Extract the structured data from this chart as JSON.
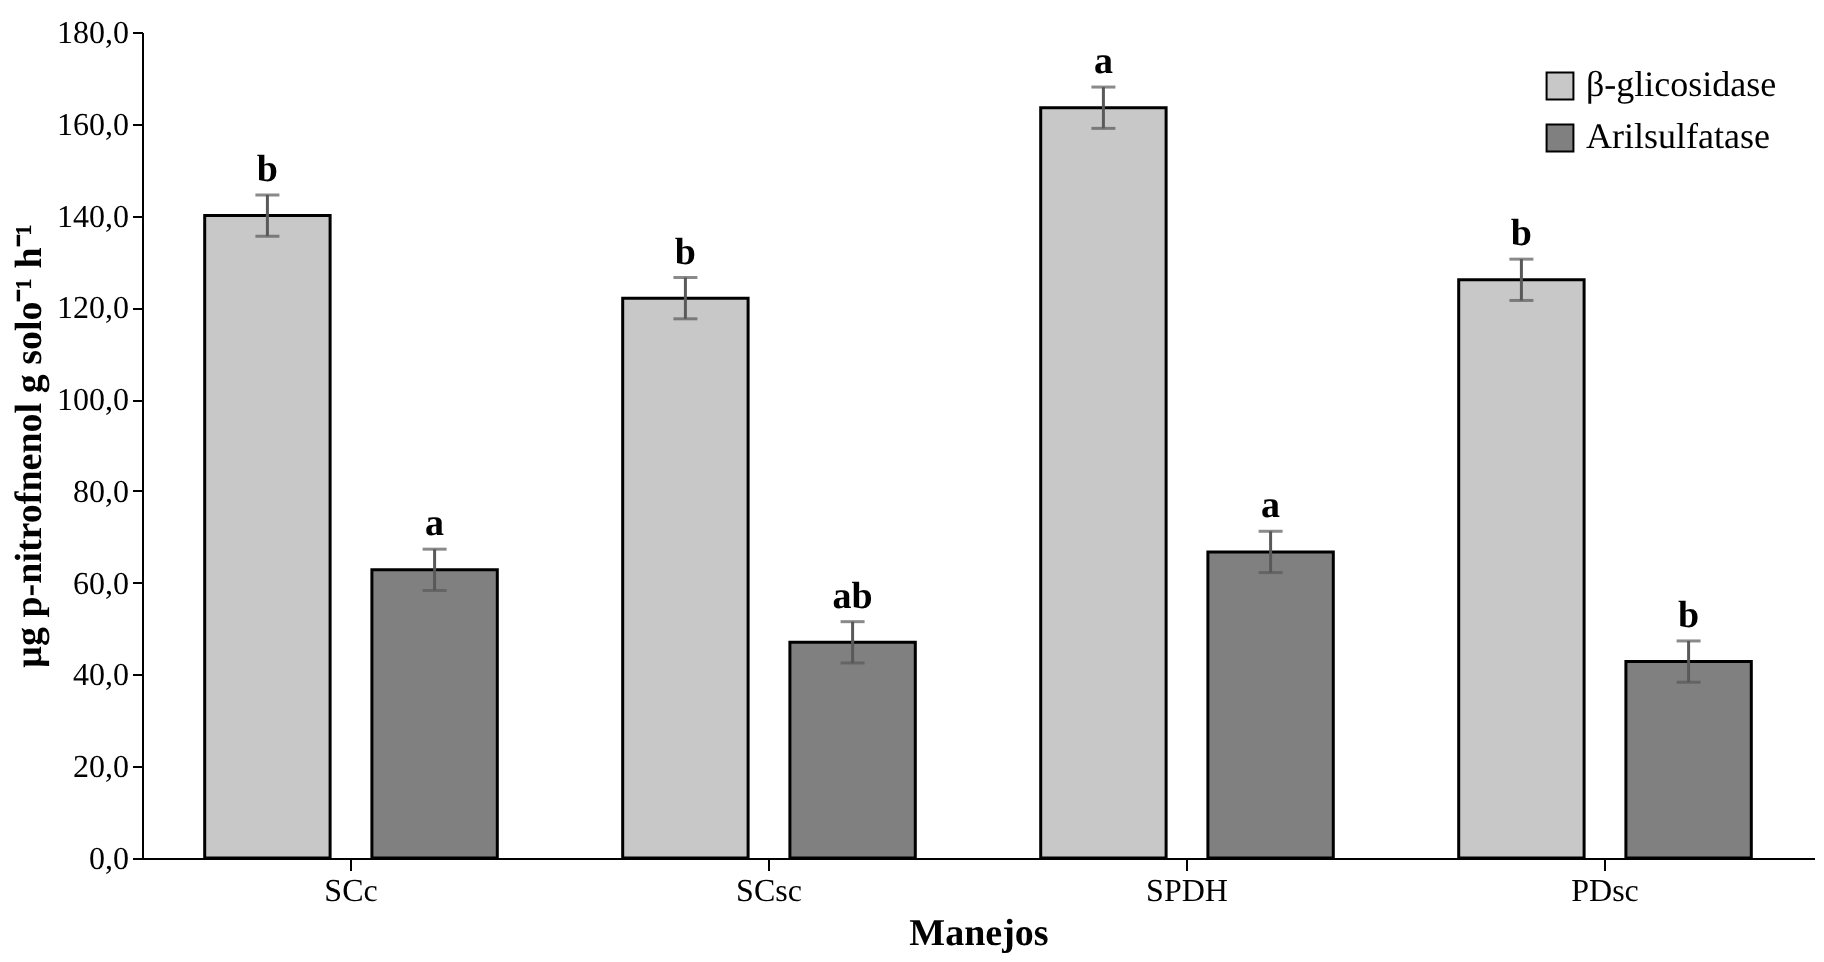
{
  "chart_data": {
    "type": "bar",
    "xlabel": "Manejos",
    "ylabel": "µg p-nitrofnenol g solo⁻¹ h⁻¹",
    "categories": [
      "SCc",
      "SCsc",
      "SPDH",
      "PDsc"
    ],
    "series": [
      {
        "name": "β-glicosidase",
        "color": "#c8c8c8",
        "values": [
          140.0,
          122.0,
          163.5,
          126.0
        ],
        "errors": [
          4.5,
          4.5,
          4.5,
          4.5
        ],
        "value_labels": [
          "b",
          "b",
          "a",
          "b"
        ]
      },
      {
        "name": "Arilsulfatase",
        "color": "#808080",
        "values": [
          62.8,
          47.0,
          66.7,
          42.8
        ],
        "errors": [
          4.5,
          4.5,
          4.5,
          4.5
        ],
        "value_labels": [
          "a",
          "ab",
          "a",
          "b"
        ]
      }
    ],
    "ylim": [
      0,
      180
    ],
    "yticks": [
      {
        "value": 0,
        "label": "0,0"
      },
      {
        "value": 20,
        "label": "20,0"
      },
      {
        "value": 40,
        "label": "40,0"
      },
      {
        "value": 60,
        "label": "60,0"
      },
      {
        "value": 80,
        "label": "80,0"
      },
      {
        "value": 100,
        "label": "100,0"
      },
      {
        "value": 120,
        "label": "120,0"
      },
      {
        "value": 140,
        "label": "140,0"
      },
      {
        "value": 160,
        "label": "160,0"
      },
      {
        "value": 180,
        "label": "180,0"
      }
    ],
    "grid": false,
    "legend": "top right"
  }
}
